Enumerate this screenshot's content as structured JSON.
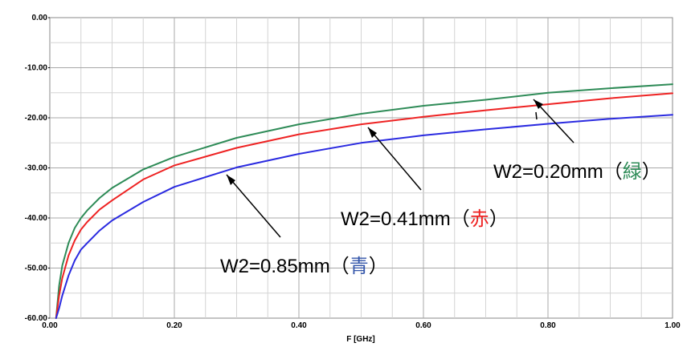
{
  "chart_data": {
    "type": "line",
    "title": "",
    "xlabel": "F [GHz]",
    "ylabel": "",
    "xlim": [
      0.0,
      1.0
    ],
    "ylim": [
      -60.0,
      0.0
    ],
    "xticks": [
      "0.00",
      "0.20",
      "0.40",
      "0.60",
      "0.80",
      "1.00"
    ],
    "yticks": [
      "0.00",
      "-10.00",
      "-20.00",
      "-30.00",
      "-40.00",
      "-50.00",
      "-60.00"
    ],
    "grid": true,
    "series": [
      {
        "color": "#2e8b57",
        "x": [
          0.01,
          0.015,
          0.02,
          0.03,
          0.04,
          0.05,
          0.06,
          0.08,
          0.1,
          0.15,
          0.2,
          0.3,
          0.4,
          0.5,
          0.6,
          0.7,
          0.8,
          0.9,
          1.0
        ],
        "y": [
          -60.0,
          -53.5,
          -49.5,
          -45.0,
          -42.0,
          -40.0,
          -38.5,
          -36.0,
          -34.0,
          -30.3,
          -27.8,
          -24.0,
          -21.3,
          -19.2,
          -17.6,
          -16.4,
          -15.0,
          -14.1,
          -13.3
        ]
      },
      {
        "color": "#ee2222",
        "x": [
          0.01,
          0.015,
          0.02,
          0.03,
          0.04,
          0.05,
          0.06,
          0.08,
          0.1,
          0.15,
          0.2,
          0.3,
          0.4,
          0.5,
          0.6,
          0.7,
          0.8,
          0.9,
          1.0
        ],
        "y": [
          -60.0,
          -55.5,
          -52.0,
          -47.5,
          -44.5,
          -42.3,
          -40.8,
          -38.3,
          -36.5,
          -32.3,
          -29.5,
          -26.0,
          -23.3,
          -21.3,
          -19.8,
          -18.5,
          -17.3,
          -16.1,
          -15.1
        ]
      },
      {
        "color": "#2a2ae0",
        "x": [
          0.01,
          0.015,
          0.02,
          0.03,
          0.04,
          0.05,
          0.06,
          0.08,
          0.1,
          0.15,
          0.2,
          0.3,
          0.4,
          0.5,
          0.6,
          0.7,
          0.8,
          0.9,
          1.0
        ],
        "y": [
          -60.0,
          -58.0,
          -55.5,
          -51.5,
          -48.5,
          -46.3,
          -45.0,
          -42.5,
          -40.5,
          -36.8,
          -33.8,
          -29.9,
          -27.2,
          -25.0,
          -23.5,
          -22.3,
          -21.2,
          -20.2,
          -19.4
        ]
      }
    ],
    "annotations": [
      {
        "prefix": "W2=0.20mm（",
        "mid": "緑",
        "suffix": "）",
        "color": "#2e8b57",
        "arrow_x": 0.78,
        "arrow_y": -15.3
      },
      {
        "prefix": "W2=0.41mm（",
        "mid": "赤",
        "suffix": "）",
        "color": "#ee2222",
        "arrow_x": 0.525,
        "arrow_y": -20.8
      },
      {
        "prefix": "W2=0.85mm（",
        "mid": "青",
        "suffix": "）",
        "color": "#3355aa",
        "arrow_x": 0.295,
        "arrow_y": -30.2
      }
    ]
  }
}
